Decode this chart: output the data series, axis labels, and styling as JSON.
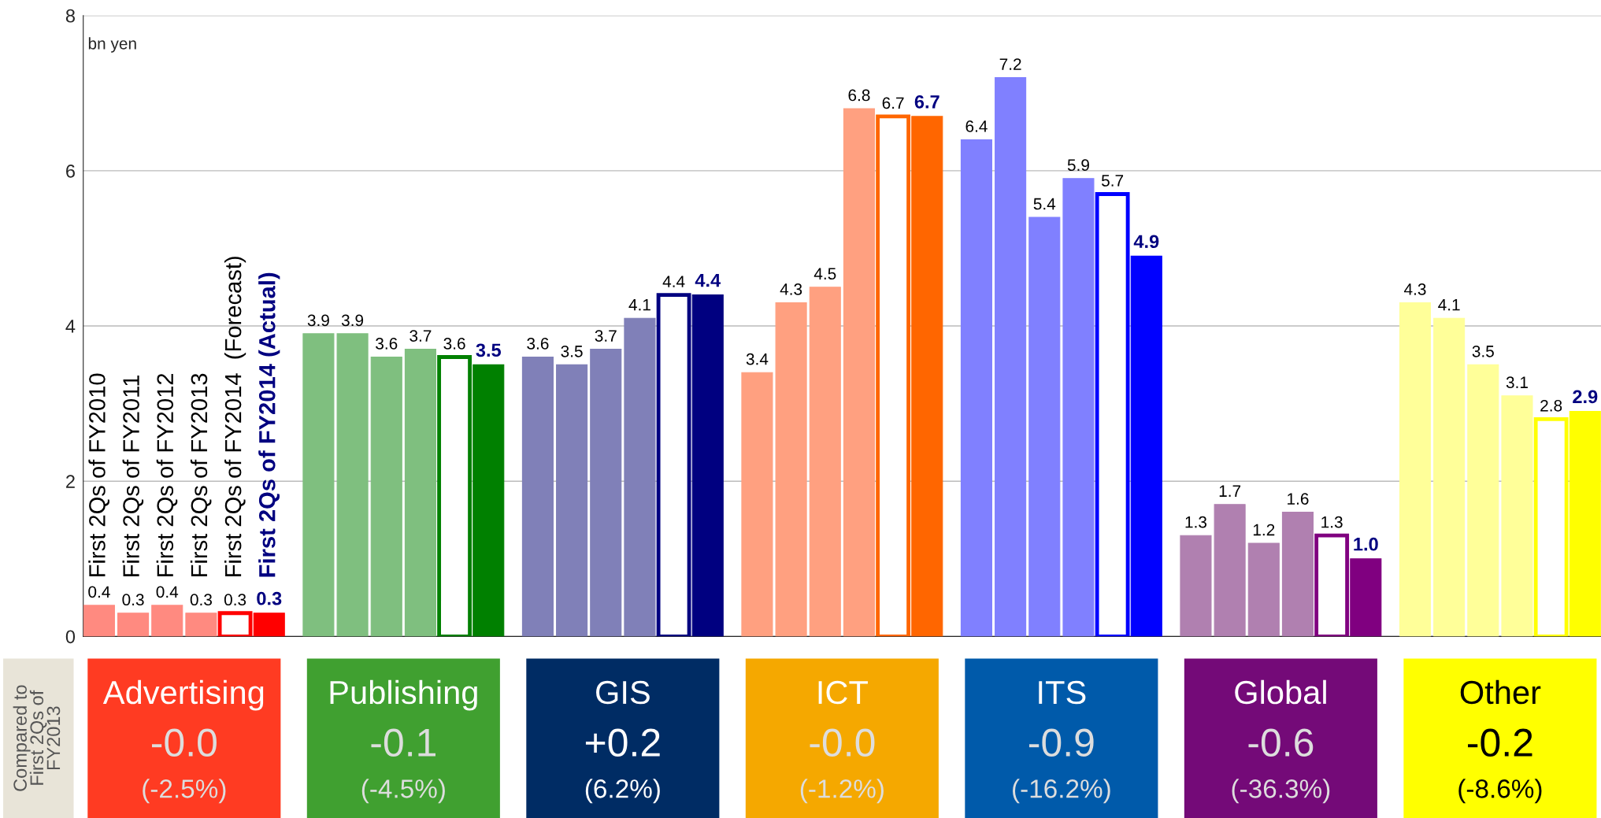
{
  "chart_data": {
    "type": "bar",
    "ylabel": "bn yen",
    "categories": [
      "Advertising",
      "Publishing",
      "GIS",
      "ICT",
      "ITS",
      "Global",
      "Other"
    ],
    "series": [
      {
        "name": "First 2Qs of FY2010",
        "colors": [
          "#ff8a80",
          "#7fbf7f",
          "#8080b8",
          "#ffa080",
          "#8080ff",
          "#b080b0",
          "#ffff99"
        ],
        "values": [
          0.4,
          3.9,
          3.6,
          3.4,
          6.4,
          1.3,
          4.3
        ],
        "value_labels": [
          "0.4",
          "3.9",
          "3.6",
          "3.4",
          "6.4",
          "1.3",
          "4.3"
        ]
      },
      {
        "name": "First 2Qs of FY2011",
        "colors": [
          "#ff8a80",
          "#7fbf7f",
          "#8080b8",
          "#ffa080",
          "#8080ff",
          "#b080b0",
          "#ffff99"
        ],
        "values": [
          0.3,
          3.9,
          3.5,
          4.3,
          7.2,
          1.7,
          4.1
        ],
        "value_labels": [
          "0.3",
          "3.9",
          "3.5",
          "4.3",
          "7.2",
          "1.7",
          "4.1"
        ]
      },
      {
        "name": "First 2Qs of FY2012",
        "colors": [
          "#ff8a80",
          "#7fbf7f",
          "#8080b8",
          "#ffa080",
          "#8080ff",
          "#b080b0",
          "#ffff99"
        ],
        "values": [
          0.4,
          3.6,
          3.7,
          4.5,
          5.4,
          1.2,
          3.5
        ],
        "value_labels": [
          "0.4",
          "3.6",
          "3.7",
          "4.5",
          "5.4",
          "1.2",
          "3.5"
        ]
      },
      {
        "name": "First 2Qs of FY2013",
        "colors": [
          "#ff8a80",
          "#7fbf7f",
          "#8080b8",
          "#ffa080",
          "#8080ff",
          "#b080b0",
          "#ffff99"
        ],
        "values": [
          0.3,
          3.7,
          4.1,
          6.8,
          5.9,
          1.6,
          3.1
        ],
        "value_labels": [
          "0.3",
          "3.7",
          "4.1",
          "6.8",
          "5.9",
          "1.6",
          "3.1"
        ]
      },
      {
        "name": "First 2Qs of FY2014  (Forecast)",
        "color": "#ffffff",
        "colors": [
          "#ff0000",
          "#008000",
          "#000080",
          "#ff6600",
          "#0000ff",
          "#800080",
          "#ffff00"
        ],
        "values": [
          0.3,
          3.6,
          4.4,
          6.7,
          5.7,
          1.3,
          2.8
        ],
        "value_labels": [
          "0.3",
          "3.6",
          "4.4",
          "6.7",
          "5.7",
          "1.3",
          "2.8"
        ]
      },
      {
        "name": "First 2Qs of FY2014 (Actual)",
        "colors": [
          "#ff0000",
          "#008000",
          "#000080",
          "#ff6600",
          "#0000ff",
          "#800080",
          "#ffff00"
        ],
        "values": [
          0.3,
          3.5,
          4.4,
          6.7,
          4.9,
          1.0,
          2.9
        ],
        "value_labels": [
          "0.3",
          "3.5",
          "4.4",
          "6.7",
          "4.9",
          "1.0",
          "2.9"
        ]
      }
    ],
    "ylim": [
      0,
      8
    ],
    "yticks": [
      0,
      2,
      4,
      6,
      8
    ],
    "grid": "y",
    "legend": false,
    "annotations": [
      "Compared to\nFirst 2Qs of\nFY2013",
      "-0.0",
      "(-2.5%)",
      "-0.1",
      "(-4.5%)",
      "+0.2",
      "(6.2%)",
      "-0.0",
      "(-1.2%)",
      "-0.9",
      "(-16.2%)",
      "-0.6",
      "(-36.3%)",
      "-0.2",
      "(-8.6%)"
    ]
  }
}
